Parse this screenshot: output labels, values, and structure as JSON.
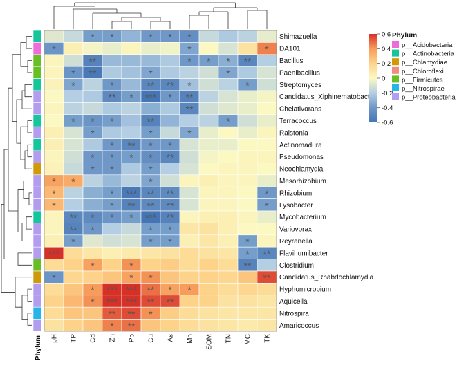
{
  "chart_data": {
    "type": "heatmap",
    "title": "",
    "columns": [
      "pH",
      "TP",
      "Cd",
      "Zn",
      "Pb",
      "Cu",
      "As",
      "Mn",
      "SOM",
      "TN",
      "MC",
      "TK"
    ],
    "rows": [
      {
        "name": "Shimazuella",
        "phylum": "p__Actinobacteria",
        "values": [
          -0.08,
          -0.15,
          -0.38,
          -0.38,
          -0.3,
          -0.4,
          -0.4,
          -0.45,
          -0.15,
          -0.22,
          -0.18,
          -0.06
        ],
        "sig": [
          "",
          "",
          "*",
          "*",
          "",
          "*",
          "*",
          "*",
          "",
          "",
          "",
          ""
        ]
      },
      {
        "name": "DA101",
        "phylum": "p__Acidobacteria",
        "values": [
          -0.42,
          0.05,
          -0.02,
          -0.05,
          0.02,
          -0.05,
          -0.03,
          -0.35,
          0.0,
          -0.1,
          0.12,
          0.45
        ],
        "sig": [
          "*",
          "",
          "",
          "",
          "",
          "",
          "",
          "*",
          "",
          "",
          "",
          "*"
        ]
      },
      {
        "name": "Bacillus",
        "phylum": "p__Firmicutes",
        "values": [
          0.02,
          -0.12,
          -0.52,
          -0.28,
          -0.28,
          -0.28,
          -0.22,
          -0.4,
          -0.38,
          -0.32,
          -0.5,
          -0.2
        ],
        "sig": [
          "",
          "",
          "**",
          "",
          "",
          "",
          "",
          "*",
          "*",
          "*",
          "**",
          ""
        ]
      },
      {
        "name": "Paenibacillus",
        "phylum": "p__Firmicutes",
        "values": [
          0.02,
          -0.42,
          -0.58,
          -0.22,
          -0.25,
          -0.35,
          -0.22,
          -0.18,
          -0.12,
          -0.35,
          -0.22,
          -0.1
        ],
        "sig": [
          "",
          "*",
          "**",
          "",
          "",
          "*",
          "",
          "",
          "",
          "*",
          "",
          ""
        ]
      },
      {
        "name": "Streptomyces",
        "phylum": "p__Actinobacteria",
        "values": [
          0.03,
          -0.35,
          -0.18,
          -0.4,
          -0.28,
          -0.5,
          -0.5,
          -0.25,
          -0.12,
          -0.18,
          -0.38,
          -0.12
        ],
        "sig": [
          "",
          "*",
          "",
          "*",
          "",
          "**",
          "**",
          "*",
          "",
          "",
          "*",
          ""
        ]
      },
      {
        "name": "Candidatus_Xiphinematobacter",
        "phylum": "p__Proteobacteria",
        "values": [
          0.0,
          -0.2,
          -0.22,
          -0.48,
          -0.38,
          -0.6,
          -0.4,
          -0.52,
          -0.18,
          -0.1,
          -0.05,
          -0.02
        ],
        "sig": [
          "",
          "",
          "",
          "**",
          "*",
          "***",
          "*",
          "**",
          "",
          "",
          "",
          ""
        ]
      },
      {
        "name": "Chelativorans",
        "phylum": "p__Proteobacteria",
        "values": [
          0.02,
          -0.18,
          -0.15,
          -0.22,
          -0.18,
          -0.32,
          -0.22,
          -0.5,
          -0.12,
          -0.08,
          -0.05,
          0.0
        ],
        "sig": [
          "",
          "",
          "",
          "",
          "",
          "",
          "",
          "**",
          "",
          "",
          "",
          ""
        ]
      },
      {
        "name": "Terracoccus",
        "phylum": "p__Actinobacteria",
        "values": [
          0.0,
          -0.38,
          -0.42,
          -0.38,
          -0.25,
          -0.52,
          -0.3,
          -0.2,
          -0.18,
          -0.38,
          -0.12,
          -0.05
        ],
        "sig": [
          "",
          "*",
          "*",
          "*",
          "",
          "**",
          "",
          "",
          "",
          "*",
          "",
          ""
        ]
      },
      {
        "name": "Ralstonia",
        "phylum": "p__Proteobacteria",
        "values": [
          0.05,
          -0.1,
          -0.38,
          -0.22,
          -0.2,
          -0.38,
          -0.15,
          -0.35,
          -0.05,
          0.0,
          -0.05,
          0.02
        ],
        "sig": [
          "",
          "",
          "*",
          "",
          "",
          "*",
          "",
          "*",
          "",
          "",
          "",
          ""
        ]
      },
      {
        "name": "Actinomadura",
        "phylum": "p__Actinobacteria",
        "values": [
          0.05,
          -0.1,
          -0.22,
          -0.4,
          -0.5,
          -0.4,
          -0.4,
          -0.1,
          -0.05,
          -0.05,
          0.0,
          0.0
        ],
        "sig": [
          "",
          "",
          "",
          "*",
          "**",
          "*",
          "*",
          "",
          "",
          "",
          "",
          ""
        ]
      },
      {
        "name": "Pseudomonas",
        "phylum": "p__Proteobacteria",
        "values": [
          0.02,
          -0.12,
          -0.4,
          -0.4,
          -0.38,
          -0.45,
          -0.5,
          -0.12,
          -0.02,
          0.0,
          0.02,
          0.02
        ],
        "sig": [
          "",
          "",
          "*",
          "*",
          "*",
          "*",
          "**",
          "",
          "",
          "",
          "",
          ""
        ]
      },
      {
        "name": "Neochlamydia",
        "phylum": "p__Chlamydiae",
        "values": [
          0.03,
          -0.15,
          -0.4,
          -0.4,
          -0.22,
          -0.38,
          -0.2,
          -0.1,
          0.0,
          0.02,
          0.02,
          0.0
        ],
        "sig": [
          "",
          "",
          "*",
          "*",
          "",
          "*",
          "",
          "",
          "",
          "",
          "",
          ""
        ]
      },
      {
        "name": "Mesorhizobium",
        "phylum": "p__Proteobacteria",
        "values": [
          0.38,
          0.35,
          -0.18,
          -0.28,
          -0.18,
          -0.35,
          -0.12,
          0.02,
          0.05,
          0.02,
          0.02,
          -0.05
        ],
        "sig": [
          "*",
          "*",
          "",
          "",
          "",
          "*",
          "",
          "",
          "",
          "",
          "",
          ""
        ]
      },
      {
        "name": "Rhizobium",
        "phylum": "p__Proteobacteria",
        "values": [
          0.3,
          -0.18,
          -0.32,
          -0.38,
          -0.58,
          -0.5,
          -0.48,
          -0.1,
          0.02,
          0.02,
          0.0,
          -0.4
        ],
        "sig": [
          "*",
          "",
          "",
          "*",
          "***",
          "**",
          "**",
          "",
          "",
          "",
          "",
          "*"
        ]
      },
      {
        "name": "Lysobacter",
        "phylum": "p__Proteobacteria",
        "values": [
          0.3,
          -0.2,
          -0.32,
          -0.38,
          -0.52,
          -0.48,
          -0.48,
          -0.1,
          0.02,
          0.02,
          0.0,
          -0.38
        ],
        "sig": [
          "*",
          "",
          "",
          "*",
          "**",
          "**",
          "**",
          "",
          "",
          "",
          "",
          "*"
        ]
      },
      {
        "name": "Mycobacterium",
        "phylum": "p__Actinobacteria",
        "values": [
          0.02,
          -0.5,
          -0.48,
          -0.42,
          -0.38,
          -0.6,
          -0.52,
          0.02,
          0.05,
          0.05,
          0.02,
          -0.05
        ],
        "sig": [
          "",
          "**",
          "*",
          "*",
          "*",
          "***",
          "**",
          "",
          "",
          "",
          "",
          ""
        ]
      },
      {
        "name": "Variovorax",
        "phylum": "p__Proteobacteria",
        "values": [
          0.02,
          -0.52,
          -0.4,
          -0.2,
          -0.15,
          -0.38,
          -0.38,
          0.1,
          0.12,
          0.05,
          0.0,
          0.0
        ],
        "sig": [
          "",
          "**",
          "*",
          "",
          "",
          "*",
          "*",
          "",
          "",
          "",
          "",
          ""
        ]
      },
      {
        "name": "Reyranella",
        "phylum": "p__Proteobacteria",
        "values": [
          0.05,
          -0.38,
          -0.08,
          -0.12,
          -0.1,
          -0.38,
          -0.38,
          0.05,
          0.1,
          0.05,
          -0.38,
          0.02
        ],
        "sig": [
          "",
          "*",
          "",
          "",
          "",
          "*",
          "*",
          "",
          "",
          "",
          "*",
          ""
        ]
      },
      {
        "name": "Flavihumibacter",
        "phylum": "p__Proteobacteria",
        "values": [
          0.62,
          0.15,
          0.1,
          0.05,
          0.08,
          0.1,
          0.12,
          0.15,
          0.12,
          0.1,
          -0.38,
          -0.5
        ],
        "sig": [
          "***",
          "",
          "",
          "",
          "",
          "",
          "",
          "",
          "",
          "",
          "*",
          "**"
        ]
      },
      {
        "name": "Clostridium",
        "phylum": "p__Firmicutes",
        "values": [
          0.15,
          0.2,
          0.38,
          0.2,
          0.42,
          0.2,
          0.22,
          0.15,
          0.2,
          0.15,
          -0.52,
          -0.2
        ],
        "sig": [
          "",
          "",
          "*",
          "",
          "*",
          "",
          "",
          "",
          "",
          "",
          "**",
          ""
        ]
      },
      {
        "name": "Candidatus_Rhabdochlamydia",
        "phylum": "p__Chlamydiae",
        "values": [
          -0.42,
          0.18,
          0.2,
          0.25,
          0.38,
          0.42,
          0.25,
          0.2,
          0.2,
          0.18,
          0.25,
          0.55
        ],
        "sig": [
          "*",
          "",
          "",
          "",
          "*",
          "*",
          "",
          "",
          "",
          "",
          "",
          "**"
        ]
      },
      {
        "name": "Hyphomicrobium",
        "phylum": "p__Proteobacteria",
        "values": [
          0.15,
          0.25,
          0.4,
          0.6,
          0.62,
          0.48,
          0.38,
          0.4,
          0.2,
          0.15,
          0.18,
          0.15
        ],
        "sig": [
          "",
          "",
          "*",
          "***",
          "***",
          "**",
          "*",
          "*",
          "",
          "",
          "",
          ""
        ]
      },
      {
        "name": "Aquicella",
        "phylum": "p__Proteobacteria",
        "values": [
          0.2,
          0.3,
          0.42,
          0.62,
          0.62,
          0.55,
          0.55,
          0.2,
          0.2,
          0.12,
          0.12,
          0.1
        ],
        "sig": [
          "",
          "",
          "*",
          "***",
          "***",
          "**",
          "**",
          "",
          "",
          "",
          "",
          ""
        ]
      },
      {
        "name": "Nitrospira",
        "phylum": "p__Nitrospirae",
        "values": [
          0.15,
          0.25,
          0.25,
          0.52,
          0.55,
          0.42,
          0.22,
          0.15,
          0.12,
          0.1,
          0.1,
          0.1
        ],
        "sig": [
          "",
          "",
          "",
          "**",
          "**",
          "*",
          "",
          "",
          "",
          "",
          "",
          ""
        ]
      },
      {
        "name": "Amaricoccus",
        "phylum": "p__Proteobacteria",
        "values": [
          0.12,
          0.2,
          0.25,
          0.45,
          0.48,
          0.25,
          0.2,
          0.15,
          0.12,
          0.1,
          0.08,
          0.1
        ],
        "sig": [
          "",
          "",
          "",
          "*",
          "**",
          "",
          "",
          "",
          "",
          "",
          "",
          ""
        ]
      }
    ],
    "colorbar": {
      "min": -0.6,
      "max": 0.6,
      "ticks": [
        0.6,
        0.4,
        0.2,
        0.0,
        -0.2,
        -0.4,
        -0.6
      ],
      "tick_labels": [
        "0.6",
        "0.4",
        "0.2",
        "0",
        "-0.2",
        "-0.4",
        "-0.6"
      ]
    },
    "annotation_label": "Phylum",
    "legend": {
      "title": "Phylum",
      "entries": [
        {
          "label": "p__Acidobacteria",
          "color": "#ee6bd9"
        },
        {
          "label": "p__Actinobacteria",
          "color": "#13c79b"
        },
        {
          "label": "p__Chlamydiae",
          "color": "#cf9a06"
        },
        {
          "label": "p__Chloroflexi",
          "color": "#f08c82"
        },
        {
          "label": "p__Firmicutes",
          "color": "#68bf24"
        },
        {
          "label": "p__Nitrospirae",
          "color": "#27b4e8"
        },
        {
          "label": "p__Proteobacteria",
          "color": "#b39df0"
        }
      ]
    },
    "palette": {
      "low": "#4575b4",
      "mid": "#fbf8c2",
      "high": "#d73027",
      "stars": "#555555"
    }
  }
}
